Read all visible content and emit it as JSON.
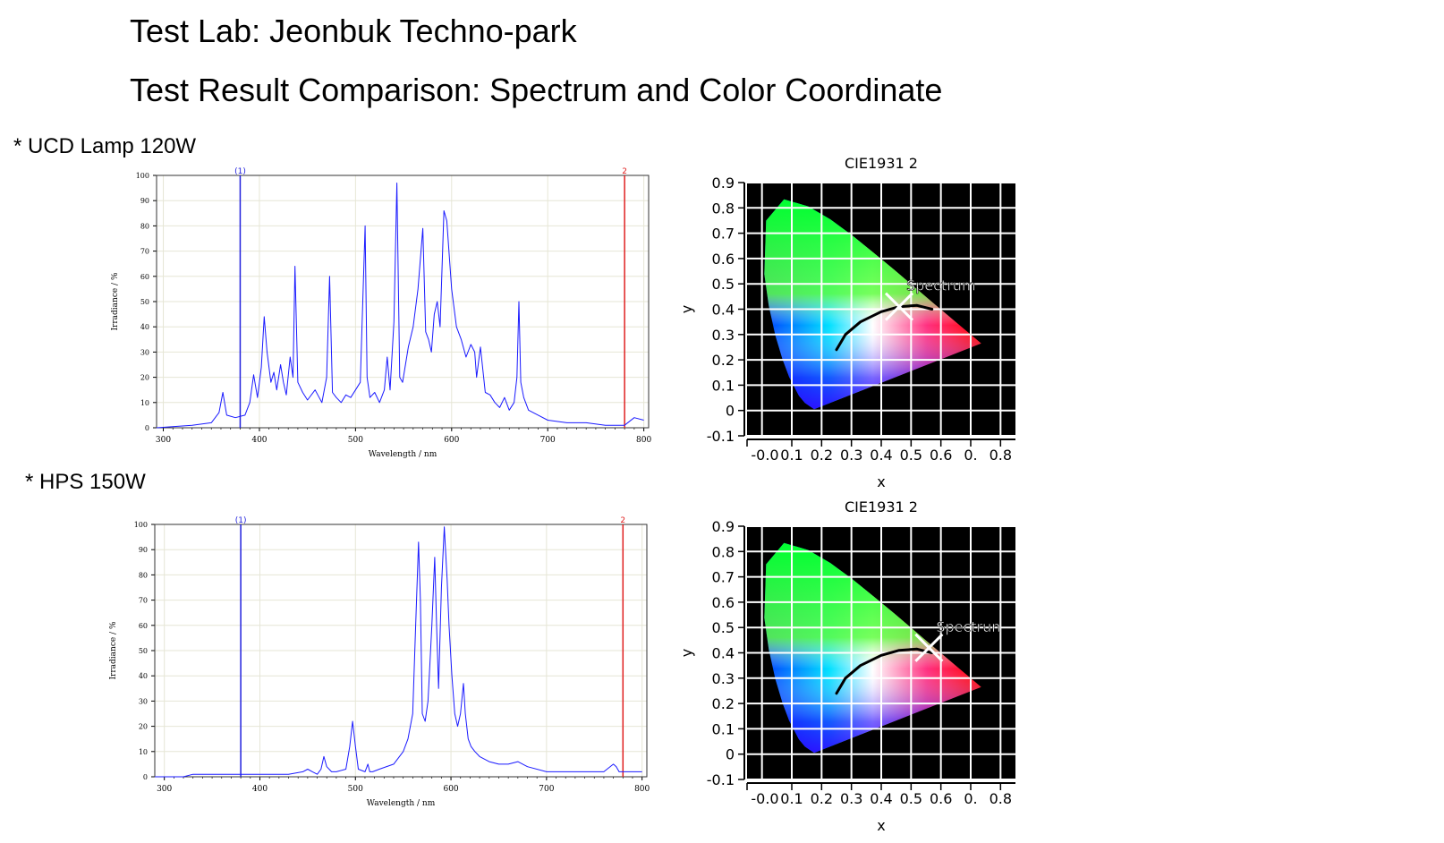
{
  "header": {
    "title": "Test Lab: Jeonbuk Techno-park",
    "subtitle": "Test Result Comparison: Spectrum and Color Coordinate"
  },
  "sections": [
    {
      "label": "* UCD Lamp 120W"
    },
    {
      "label": "* HPS 150W"
    }
  ],
  "colors": {
    "spectrum_line": "#1a1aff",
    "marker_1": "#2020dd",
    "marker_2": "#e02020",
    "grid": "#e6e6d6",
    "cie_background": "#000000",
    "cie_grid": "#ffffff",
    "planckian_locus": "#000000"
  },
  "chart_data": [
    {
      "type": "line",
      "title": "",
      "xlabel": "Wavelength / nm",
      "ylabel": "Irradiance / %",
      "xlim": [
        293,
        805
      ],
      "ylim": [
        0,
        100
      ],
      "x_ticks": [
        300,
        400,
        500,
        600,
        700,
        800
      ],
      "y_ticks": [
        0,
        10,
        20,
        30,
        40,
        50,
        60,
        70,
        80,
        90,
        100
      ],
      "grid": true,
      "markers": [
        {
          "label": "(1)",
          "x": 380,
          "color": "#2020dd"
        },
        {
          "label": "2",
          "x": 780,
          "color": "#e02020"
        }
      ],
      "series": [
        {
          "x": [
            293,
            330,
            350,
            358,
            362,
            366,
            375,
            385,
            390,
            394,
            398,
            402,
            405,
            408,
            412,
            415,
            418,
            422,
            425,
            428,
            432,
            435,
            437,
            440,
            445,
            450,
            458,
            465,
            470,
            473,
            476,
            480,
            485,
            490,
            495,
            500,
            505,
            510,
            512,
            515,
            520,
            525,
            530,
            533,
            536,
            540,
            543,
            546,
            549,
            552,
            555,
            560,
            565,
            570,
            573,
            576,
            579,
            582,
            585,
            588,
            592,
            595,
            600,
            605,
            610,
            615,
            620,
            624,
            626,
            630,
            635,
            640,
            645,
            650,
            655,
            660,
            665,
            668,
            670,
            672,
            675,
            680,
            690,
            700,
            720,
            740,
            760,
            780,
            790,
            800
          ],
          "y": [
            0,
            1,
            2,
            6,
            14,
            5,
            4,
            5,
            10,
            21,
            12,
            24,
            44,
            30,
            18,
            22,
            15,
            25,
            18,
            13,
            28,
            20,
            64,
            18,
            14,
            11,
            15,
            10,
            20,
            60,
            14,
            12,
            10,
            13,
            12,
            15,
            18,
            80,
            20,
            12,
            14,
            10,
            15,
            28,
            15,
            42,
            97,
            20,
            18,
            25,
            32,
            40,
            55,
            79,
            38,
            35,
            30,
            45,
            50,
            40,
            86,
            82,
            55,
            40,
            35,
            28,
            33,
            30,
            20,
            32,
            14,
            13,
            10,
            8,
            12,
            7,
            10,
            20,
            50,
            18,
            12,
            7,
            5,
            3,
            2,
            2,
            1,
            1,
            4,
            3
          ]
        }
      ]
    },
    {
      "type": "scatter",
      "title": "CIE1931 2",
      "xlabel": "x",
      "ylabel": "y",
      "xlim": [
        -0.05,
        0.85
      ],
      "ylim": [
        -0.1,
        0.9
      ],
      "x_ticks": [
        "-0.0",
        "0.1",
        "0.2",
        "0.3",
        "0.4",
        "0.5",
        "0.6",
        "0.",
        "0.8"
      ],
      "y_ticks": [
        "0.9",
        "0.8",
        "0.7",
        "0.6",
        "0.5",
        "0.4",
        "0.3",
        "0.2",
        "0.1",
        "0",
        "-0.1"
      ],
      "grid": true,
      "points": [
        {
          "label": "Spectrum",
          "x": 0.46,
          "y": 0.41
        }
      ]
    },
    {
      "type": "line",
      "title": "",
      "xlabel": "Wavelength / nm",
      "ylabel": "Irradiance / %",
      "xlim": [
        290,
        805
      ],
      "ylim": [
        0,
        100
      ],
      "x_ticks": [
        300,
        400,
        500,
        600,
        700,
        800
      ],
      "y_ticks": [
        0,
        10,
        20,
        30,
        40,
        50,
        60,
        70,
        80,
        90,
        100
      ],
      "grid": true,
      "markers": [
        {
          "label": "(1)",
          "x": 380,
          "color": "#2020dd"
        },
        {
          "label": "2",
          "x": 780,
          "color": "#e02020"
        }
      ],
      "series": [
        {
          "x": [
            290,
            320,
            330,
            350,
            400,
            430,
            445,
            450,
            455,
            460,
            464,
            467,
            470,
            475,
            480,
            490,
            494,
            497,
            500,
            503,
            510,
            513,
            515,
            518,
            525,
            540,
            550,
            555,
            560,
            563,
            566,
            568,
            570,
            573,
            576,
            580,
            583,
            585,
            587,
            590,
            593,
            596,
            598,
            601,
            604,
            607,
            610,
            613,
            615,
            618,
            621,
            625,
            630,
            640,
            650,
            660,
            670,
            680,
            700,
            730,
            760,
            770,
            773,
            776,
            780,
            790,
            800
          ],
          "y": [
            0,
            0,
            1,
            1,
            1,
            1,
            2,
            3,
            2,
            1,
            3,
            8,
            4,
            2,
            2,
            3,
            12,
            22,
            12,
            3,
            2,
            5,
            2,
            2,
            3,
            5,
            10,
            15,
            25,
            60,
            93,
            70,
            25,
            22,
            30,
            60,
            87,
            60,
            35,
            75,
            99,
            78,
            60,
            40,
            25,
            20,
            25,
            37,
            25,
            15,
            12,
            10,
            8,
            6,
            5,
            5,
            6,
            4,
            2,
            2,
            2,
            5,
            4,
            2,
            2,
            2,
            2
          ]
        }
      ]
    },
    {
      "type": "scatter",
      "title": "CIE1931 2",
      "xlabel": "x",
      "ylabel": "y",
      "xlim": [
        -0.05,
        0.85
      ],
      "ylim": [
        -0.1,
        0.9
      ],
      "x_ticks": [
        "-0.0",
        "0.1",
        "0.2",
        "0.3",
        "0.4",
        "0.5",
        "0.6",
        "0.",
        "0.8"
      ],
      "y_ticks": [
        "0.9",
        "0.8",
        "0.7",
        "0.6",
        "0.5",
        "0.4",
        "0.3",
        "0.2",
        "0.1",
        "0",
        "-0.1"
      ],
      "grid": true,
      "points": [
        {
          "label": "Spectrun",
          "x": 0.56,
          "y": 0.42
        }
      ]
    }
  ]
}
